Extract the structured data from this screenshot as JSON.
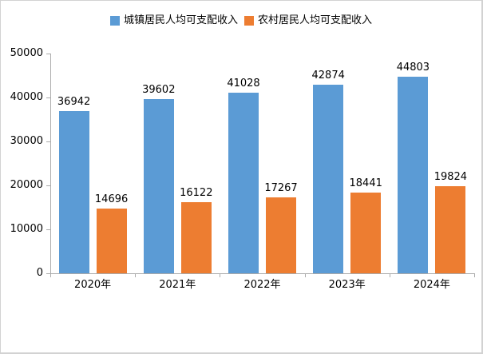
{
  "chart_data": {
    "type": "bar",
    "title": "",
    "xlabel": "",
    "ylabel": "",
    "categories": [
      "2020年",
      "2021年",
      "2022年",
      "2023年",
      "2024年"
    ],
    "series": [
      {
        "name": "城镇居民人均可支配收入",
        "color": "#5B9BD5",
        "values": [
          36942,
          39602,
          41028,
          42874,
          44803
        ]
      },
      {
        "name": "农村居民人均可支配收入",
        "color": "#ED7D31",
        "values": [
          14696,
          16122,
          17267,
          18441,
          19824
        ]
      }
    ],
    "ylim": [
      0,
      50000
    ],
    "yticks": [
      0,
      10000,
      20000,
      30000,
      40000,
      50000
    ],
    "grid": false,
    "data_labels": true,
    "legend_position": "top-center",
    "axis_color": "#ababab",
    "label_color": "#000000",
    "background_color": "#ffffff",
    "frame_border_color": "#d2d2d2"
  }
}
